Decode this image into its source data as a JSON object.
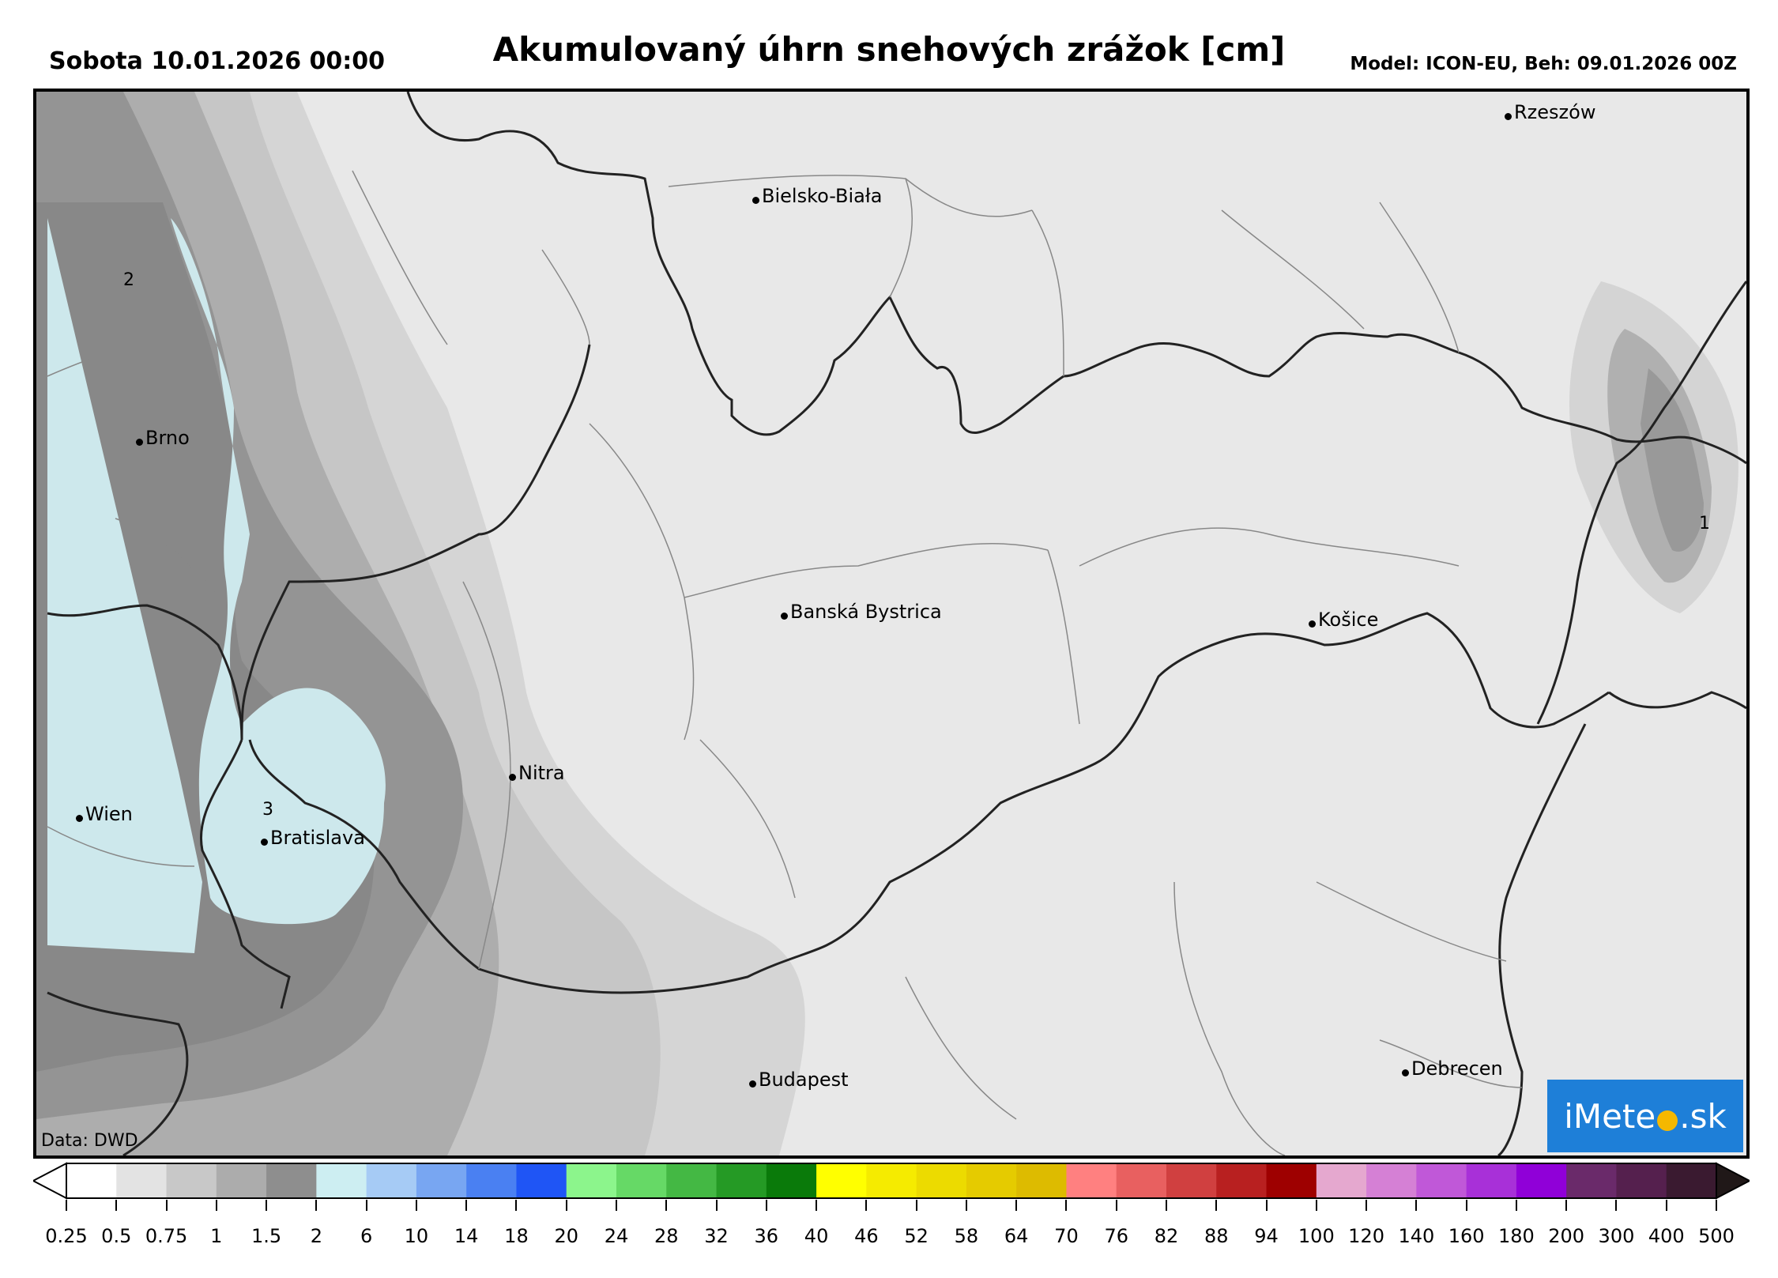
{
  "header": {
    "date_time": "Sobota 10.01.2026 00:00",
    "title": "Akumulovaný úhrn snehových zrážok [cm]",
    "model": "Model: ICON-EU, Beh: 09.01.2026 00Z"
  },
  "map": {
    "data_credit": "Data: DWD",
    "cities": [
      {
        "name": "Rzeszów"
      },
      {
        "name": "Bielsko-Biała"
      },
      {
        "name": "Brno"
      },
      {
        "name": "Banská Bystrica"
      },
      {
        "name": "Košice"
      },
      {
        "name": "Nitra"
      },
      {
        "name": "Wien"
      },
      {
        "name": "Bratislava"
      },
      {
        "name": "Budapest"
      },
      {
        "name": "Debrecen"
      }
    ],
    "contour_labels": [
      "2",
      "3",
      "1"
    ]
  },
  "logo": {
    "pre": "iMete",
    "post": ".sk"
  },
  "colorbar": {
    "ticks": [
      "0.25",
      "0.5",
      "0.75",
      "1",
      "1.5",
      "2",
      "6",
      "10",
      "14",
      "18",
      "20",
      "24",
      "28",
      "32",
      "36",
      "40",
      "46",
      "52",
      "58",
      "64",
      "70",
      "76",
      "82",
      "88",
      "94",
      "100",
      "120",
      "140",
      "160",
      "180",
      "200",
      "300",
      "400",
      "500"
    ],
    "colors": [
      "#ffffff",
      "#e3e3e3",
      "#c8c8c8",
      "#acacac",
      "#8e8e8e",
      "#cdeef2",
      "#a6cbf5",
      "#78a6f2",
      "#4a80f2",
      "#1f55f5",
      "#8cf58c",
      "#66d966",
      "#44b844",
      "#259a25",
      "#0a7a0a",
      "#ffff00",
      "#f5eb00",
      "#ecdb00",
      "#e5cb00",
      "#ddbb00",
      "#ff8080",
      "#e86060",
      "#d04040",
      "#b82020",
      "#9e0000",
      "#e5a8cf",
      "#d580d5",
      "#c058d8",
      "#a830d8",
      "#9000d8",
      "#6a2a6a",
      "#55204e",
      "#3a1a30",
      "#201818"
    ]
  }
}
